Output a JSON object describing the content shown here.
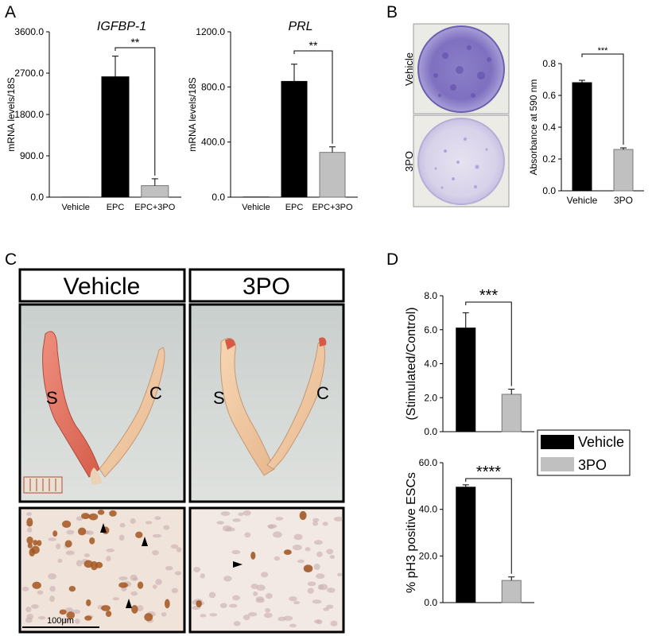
{
  "panel_labels": {
    "a": "A",
    "b": "B",
    "c": "C",
    "d": "D"
  },
  "colors": {
    "vehicle": "#000000",
    "treatment": "#c0c0c0",
    "tissue_red": "#e2705e",
    "tissue_pale": "#efc6a0",
    "stain_brown": "#a0521c"
  },
  "panel_c": {
    "header_left": "Vehicle",
    "header_right": "3PO",
    "photo_left_label_s": "S",
    "photo_left_label_c": "C",
    "photo_right_label_s": "S",
    "photo_right_label_c": "C",
    "scale_bar_label": "100μm"
  },
  "legend": {
    "vehicle": "Vehicle",
    "treatment": "3PO"
  },
  "chart_data": [
    {
      "id": "A1",
      "type": "bar",
      "title": "IGFBP-1",
      "ylabel": "mRNA levels/18S",
      "categories": [
        "Vehicle",
        "EPC",
        "EPC+3PO"
      ],
      "values": [
        1,
        2620,
        250
      ],
      "errors": [
        0,
        450,
        150
      ],
      "bar_colors": [
        "#000000",
        "#000000",
        "#c0c0c0"
      ],
      "ylim": [
        0,
        3600
      ],
      "yticks": [
        "0.0",
        "900.0",
        "1800.0",
        "2700.0",
        "3600.0"
      ],
      "annotation": "**"
    },
    {
      "id": "A2",
      "type": "bar",
      "title": "PRL",
      "ylabel": "mRNA levels/18S",
      "categories": [
        "Vehicle",
        "EPC",
        "EPC+3PO"
      ],
      "values": [
        1,
        840,
        325
      ],
      "errors": [
        0,
        125,
        40
      ],
      "bar_colors": [
        "#000000",
        "#000000",
        "#c0c0c0"
      ],
      "ylim": [
        0,
        1200
      ],
      "yticks": [
        "0.0",
        "400.0",
        "800.0",
        "1200.0"
      ],
      "annotation": "**"
    },
    {
      "id": "B",
      "type": "bar",
      "title": "",
      "ylabel": "Absorbance at 590 nm",
      "categories": [
        "Vehicle",
        "3PO"
      ],
      "values": [
        0.68,
        0.26
      ],
      "errors": [
        0.015,
        0.01
      ],
      "bar_colors": [
        "#000000",
        "#c0c0c0"
      ],
      "ylim": [
        0,
        0.8
      ],
      "yticks": [
        "0.0",
        "0.2",
        "0.4",
        "0.6",
        "0.8"
      ],
      "annotation": "***",
      "image_labels": [
        "Vehicle",
        "3PO"
      ]
    },
    {
      "id": "D1",
      "type": "bar",
      "title": "",
      "ylabel": "(Stimulated/Control)",
      "categories": [
        "Vehicle",
        "3PO"
      ],
      "values": [
        6.1,
        2.2
      ],
      "errors": [
        0.9,
        0.3
      ],
      "bar_colors": [
        "#000000",
        "#c0c0c0"
      ],
      "ylim": [
        0,
        8
      ],
      "yticks": [
        "0.0",
        "2.0",
        "4.0",
        "6.0",
        "8.0"
      ],
      "annotation": "***"
    },
    {
      "id": "D2",
      "type": "bar",
      "title": "",
      "ylabel": "% pH3 positive ESCs",
      "categories": [
        "Vehicle",
        "3PO"
      ],
      "values": [
        49.5,
        9.5
      ],
      "errors": [
        1.0,
        1.5
      ],
      "bar_colors": [
        "#000000",
        "#c0c0c0"
      ],
      "ylim": [
        0,
        60
      ],
      "yticks": [
        "0.0",
        "20.0",
        "40.0",
        "60.0"
      ],
      "annotation": "****"
    }
  ]
}
